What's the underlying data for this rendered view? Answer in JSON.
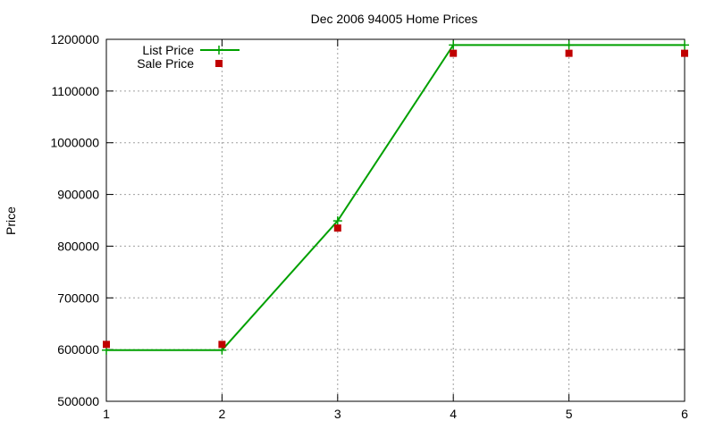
{
  "chart_data": {
    "type": "line",
    "title": "Dec 2006 94005 Home Prices",
    "xlabel": "",
    "ylabel": "Price",
    "xlim": [
      1,
      6
    ],
    "ylim": [
      500000,
      1200000
    ],
    "x_ticks": [
      1,
      2,
      3,
      4,
      5,
      6
    ],
    "y_ticks": [
      500000,
      600000,
      700000,
      800000,
      900000,
      1000000,
      1100000,
      1200000
    ],
    "grid": true,
    "legend_position": "top-left",
    "series": [
      {
        "name": "List Price",
        "style": "line-with-plus-markers",
        "color": "#00a000",
        "x": [
          1,
          2,
          3,
          4,
          5,
          6
        ],
        "values": [
          599000,
          599000,
          849000,
          1189000,
          1189000,
          1189000
        ]
      },
      {
        "name": "Sale Price",
        "style": "square-markers",
        "color": "#c00000",
        "x": [
          1,
          2,
          3,
          4,
          5,
          6
        ],
        "values": [
          610000,
          610000,
          835000,
          1173000,
          1173000,
          1173000
        ]
      }
    ]
  }
}
